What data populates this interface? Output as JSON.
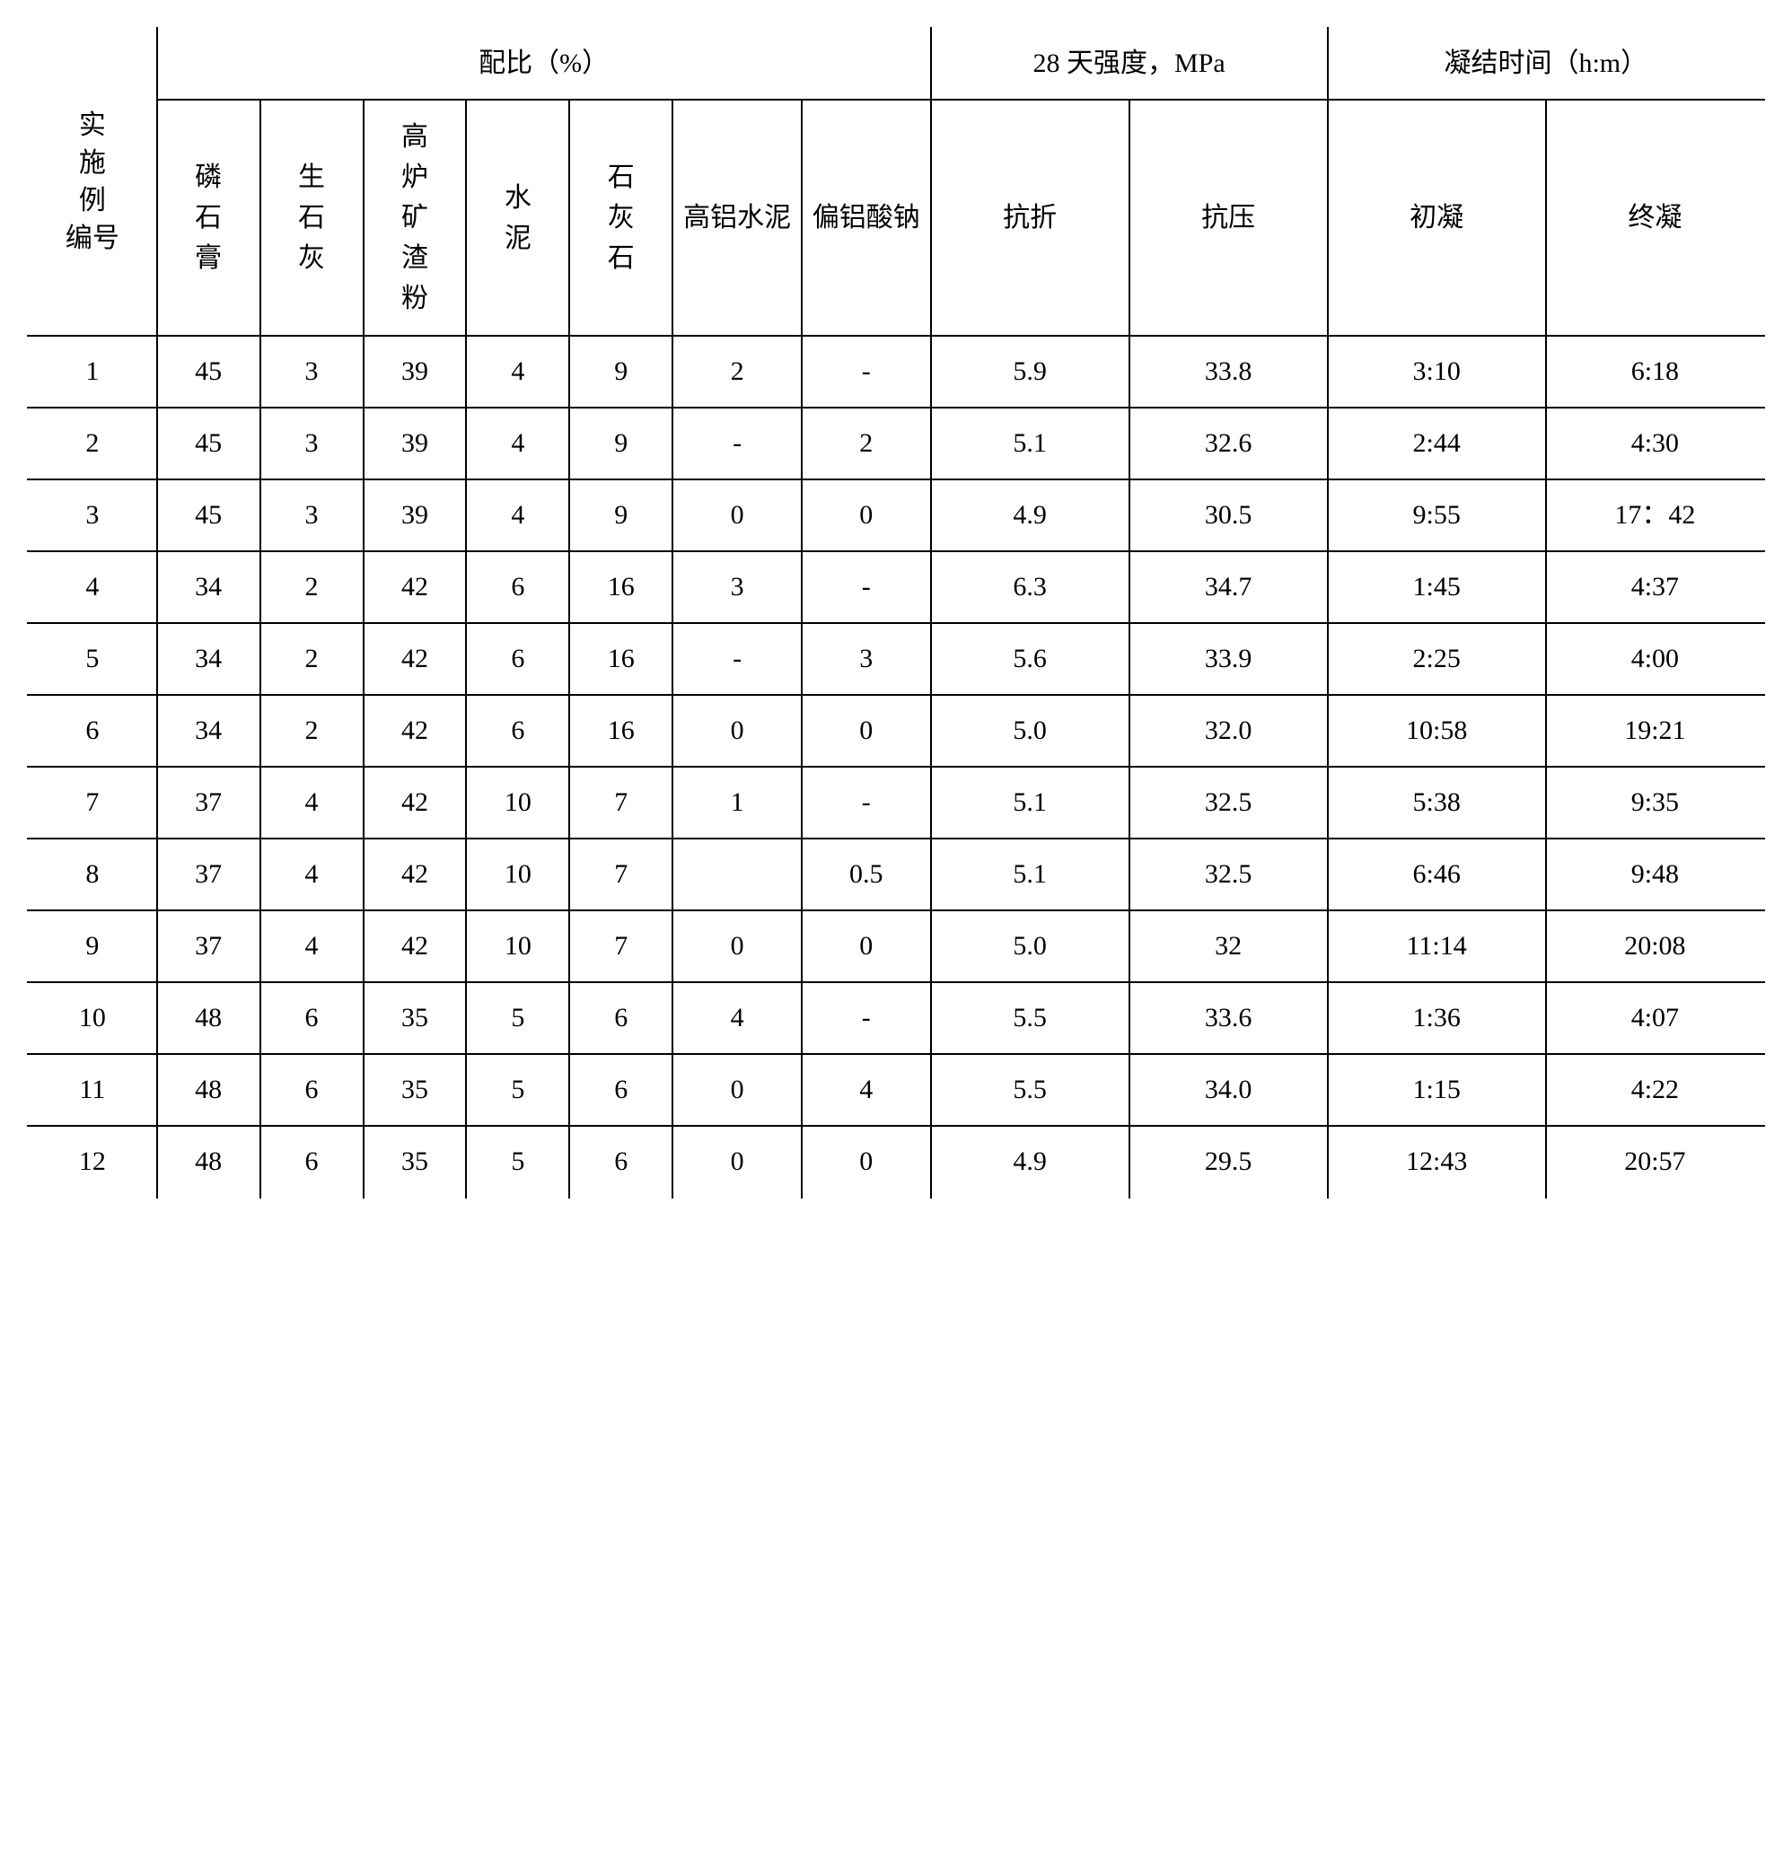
{
  "table": {
    "header": {
      "row_label_lines": [
        "实",
        "施",
        "例",
        "编号"
      ],
      "group_mix": "配比（%）",
      "group_strength": "28 天强度，MPa",
      "group_time": "凝结时间（h:m）",
      "mix_cols": [
        "磷石膏",
        "生石灰",
        "高炉矿渣粉",
        "水泥",
        "石灰石",
        "高铝水泥",
        "偏铝酸钠"
      ],
      "strength_cols": [
        "抗折",
        "抗压"
      ],
      "time_cols": [
        "初凝",
        "终凝"
      ]
    },
    "rows": [
      {
        "id": "1",
        "mix": [
          "45",
          "3",
          "39",
          "4",
          "9",
          "2",
          "-"
        ],
        "str": [
          "5.9",
          "33.8"
        ],
        "time": [
          "3:10",
          "6:18"
        ]
      },
      {
        "id": "2",
        "mix": [
          "45",
          "3",
          "39",
          "4",
          "9",
          "-",
          "2"
        ],
        "str": [
          "5.1",
          "32.6"
        ],
        "time": [
          "2:44",
          "4:30"
        ]
      },
      {
        "id": "3",
        "mix": [
          "45",
          "3",
          "39",
          "4",
          "9",
          "0",
          "0"
        ],
        "str": [
          "4.9",
          "30.5"
        ],
        "time": [
          "9:55",
          "17：42"
        ]
      },
      {
        "id": "4",
        "mix": [
          "34",
          "2",
          "42",
          "6",
          "16",
          "3",
          "-"
        ],
        "str": [
          "6.3",
          "34.7"
        ],
        "time": [
          "1:45",
          "4:37"
        ]
      },
      {
        "id": "5",
        "mix": [
          "34",
          "2",
          "42",
          "6",
          "16",
          "-",
          "3"
        ],
        "str": [
          "5.6",
          "33.9"
        ],
        "time": [
          "2:25",
          "4:00"
        ]
      },
      {
        "id": "6",
        "mix": [
          "34",
          "2",
          "42",
          "6",
          "16",
          "0",
          "0"
        ],
        "str": [
          "5.0",
          "32.0"
        ],
        "time": [
          "10:58",
          "19:21"
        ]
      },
      {
        "id": "7",
        "mix": [
          "37",
          "4",
          "42",
          "10",
          "7",
          "1",
          "-"
        ],
        "str": [
          "5.1",
          "32.5"
        ],
        "time": [
          "5:38",
          "9:35"
        ]
      },
      {
        "id": "8",
        "mix": [
          "37",
          "4",
          "42",
          "10",
          "7",
          "",
          "0.5"
        ],
        "str": [
          "5.1",
          "32.5"
        ],
        "time": [
          "6:46",
          "9:48"
        ]
      },
      {
        "id": "9",
        "mix": [
          "37",
          "4",
          "42",
          "10",
          "7",
          "0",
          "0"
        ],
        "str": [
          "5.0",
          "32"
        ],
        "time": [
          "11:14",
          "20:08"
        ]
      },
      {
        "id": "10",
        "mix": [
          "48",
          "6",
          "35",
          "5",
          "6",
          "4",
          "-"
        ],
        "str": [
          "5.5",
          "33.6"
        ],
        "time": [
          "1:36",
          "4:07"
        ]
      },
      {
        "id": "11",
        "mix": [
          "48",
          "6",
          "35",
          "5",
          "6",
          "0",
          "4"
        ],
        "str": [
          "5.5",
          "34.0"
        ],
        "time": [
          "1:15",
          "4:22"
        ]
      },
      {
        "id": "12",
        "mix": [
          "48",
          "6",
          "35",
          "5",
          "6",
          "0",
          "0"
        ],
        "str": [
          "4.9",
          "29.5"
        ],
        "time": [
          "12:43",
          "20:57"
        ]
      }
    ]
  }
}
